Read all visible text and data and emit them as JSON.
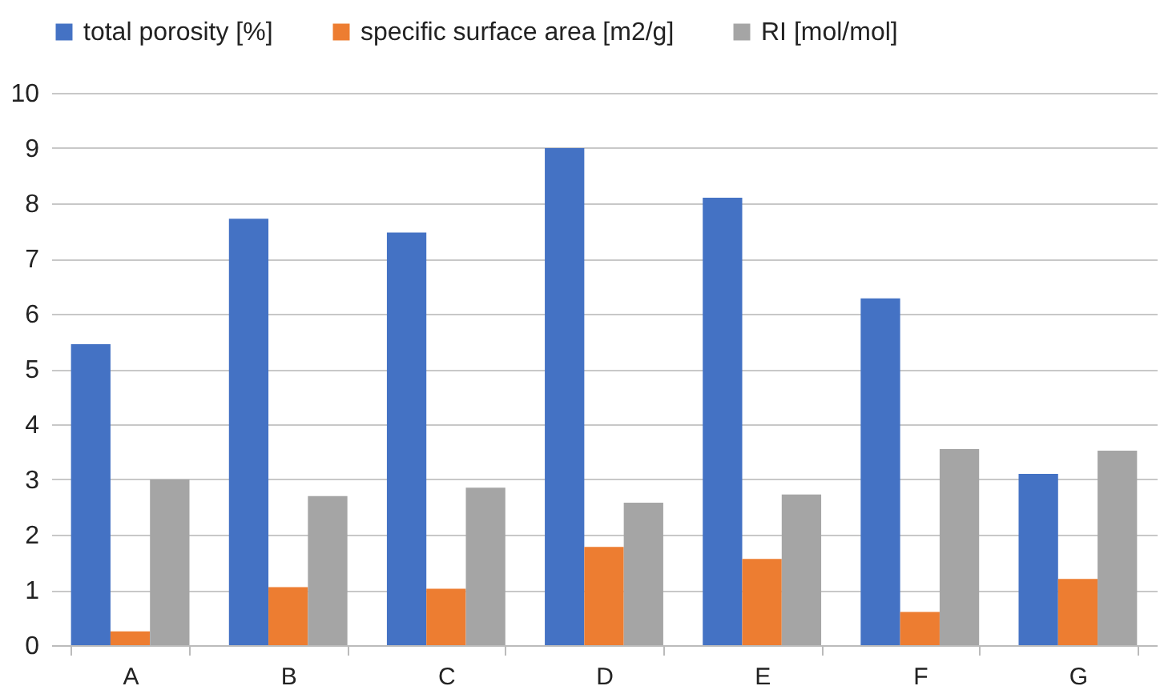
{
  "chart_data": {
    "type": "bar",
    "categories": [
      "A",
      "B",
      "C",
      "D",
      "E",
      "F",
      "G"
    ],
    "series": [
      {
        "name": "total porosity [%]",
        "color": "#4472c4",
        "values": [
          5.45,
          7.72,
          7.47,
          9.0,
          8.1,
          6.28,
          3.1
        ]
      },
      {
        "name": "specific surface area [m2/g]",
        "color": "#ed7d31",
        "values": [
          0.25,
          1.05,
          1.02,
          1.78,
          1.56,
          0.6,
          1.2
        ]
      },
      {
        "name": "RI [mol/mol]",
        "color": "#a5a5a5",
        "values": [
          3.0,
          2.7,
          2.85,
          2.58,
          2.73,
          3.55,
          3.52
        ]
      }
    ],
    "ylim": [
      0,
      10
    ],
    "yticks": [
      0,
      1,
      2,
      3,
      4,
      5,
      6,
      7,
      8,
      9,
      10
    ],
    "grid": "y",
    "legend": "top"
  }
}
